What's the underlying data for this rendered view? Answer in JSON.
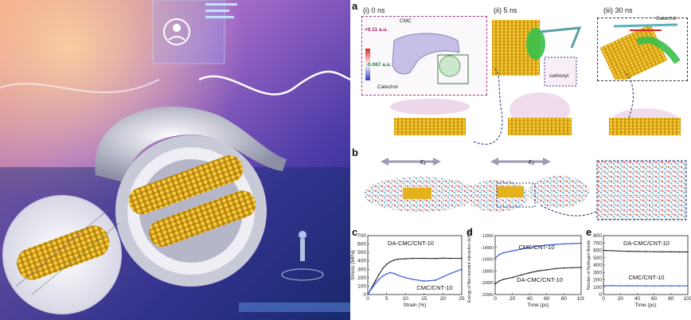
{
  "panel_a": {
    "label": "a",
    "states": [
      {
        "title": "(i) 0 ns",
        "annotations": [
          "CMC",
          "+0.11 a.u.",
          "-0.067 a.u.",
          "Catechol"
        ]
      },
      {
        "title": "(ii) 5 ns",
        "annotations": [
          "carboxyl"
        ]
      },
      {
        "title": "(iii) 30 ns",
        "annotations": [
          "Catechol"
        ]
      }
    ]
  },
  "panel_b": {
    "label": "b",
    "strain_labels": [
      "ε₁",
      "ε₂"
    ]
  },
  "chart_data": [
    {
      "id": "c",
      "type": "line",
      "panel_label": "c",
      "xlabel": "Strain (%)",
      "ylabel": "Stress (MPa)",
      "xlim": [
        0,
        25
      ],
      "ylim": [
        0,
        700
      ],
      "xticks": [
        "0",
        "5",
        "10",
        "15",
        "20",
        "25"
      ],
      "yticks": [
        "0",
        "100",
        "200",
        "300",
        "400",
        "500",
        "600",
        "700"
      ],
      "series": [
        {
          "name": "DA-CMC/CNT-10",
          "color": "#333333",
          "x": [
            0,
            1,
            2,
            3,
            4,
            5,
            6,
            7,
            8,
            10,
            12,
            15,
            18,
            20,
            22,
            25
          ],
          "y": [
            0,
            80,
            160,
            240,
            310,
            360,
            390,
            410,
            420,
            425,
            430,
            430,
            428,
            432,
            430,
            430
          ]
        },
        {
          "name": "CMC/CNT-10",
          "color": "#3b5bdb",
          "x": [
            0,
            1,
            2,
            3,
            4,
            5,
            6,
            7,
            8,
            10,
            12,
            15,
            18,
            20,
            22,
            25
          ],
          "y": [
            0,
            70,
            130,
            180,
            220,
            245,
            260,
            250,
            230,
            200,
            180,
            160,
            170,
            210,
            250,
            300
          ]
        }
      ]
    },
    {
      "id": "d",
      "type": "line",
      "panel_label": "d",
      "xlabel": "Time (ps)",
      "ylabel": "Energy of Non-bonded interaction (kJ/mol)",
      "xlim": [
        0,
        100
      ],
      "ylim": [
        -22000,
        -12000
      ],
      "xticks": [
        "0",
        "20",
        "40",
        "60",
        "80",
        "100"
      ],
      "yticks": [
        "-12000",
        "-14000",
        "-16000",
        "-18000",
        "-20000",
        "-22000"
      ],
      "series": [
        {
          "name": "CMC/CNT-10",
          "color": "#3b5bdb",
          "x": [
            0,
            5,
            10,
            20,
            30,
            40,
            50,
            60,
            70,
            80,
            90,
            100
          ],
          "y": [
            -15800,
            -15200,
            -14900,
            -14600,
            -14300,
            -14000,
            -13800,
            -13600,
            -13500,
            -13400,
            -13350,
            -13300
          ]
        },
        {
          "name": "DA-CMC/CNT-10",
          "color": "#333333",
          "x": [
            0,
            5,
            10,
            20,
            30,
            40,
            50,
            60,
            70,
            80,
            90,
            100
          ],
          "y": [
            -20200,
            -19700,
            -19400,
            -19100,
            -18700,
            -18300,
            -18000,
            -17800,
            -17600,
            -17500,
            -17450,
            -17400
          ]
        }
      ]
    },
    {
      "id": "e",
      "type": "line",
      "panel_label": "e",
      "xlabel": "Time (ps)",
      "ylabel": "Number of Hydrogen Bonds",
      "xlim": [
        0,
        100
      ],
      "ylim": [
        0,
        800
      ],
      "xticks": [
        "0",
        "20",
        "40",
        "60",
        "80",
        "100"
      ],
      "yticks": [
        "0",
        "100",
        "200",
        "300",
        "400",
        "500",
        "600",
        "700",
        "800"
      ],
      "series": [
        {
          "name": "DA-CMC/CNT-10",
          "color": "#333333",
          "x": [
            0,
            10,
            20,
            30,
            40,
            50,
            60,
            70,
            80,
            90,
            100
          ],
          "y": [
            600,
            595,
            590,
            588,
            585,
            583,
            582,
            580,
            580,
            578,
            578
          ]
        },
        {
          "name": "CMC/CNT-10",
          "color": "#3b5bdb",
          "x": [
            0,
            10,
            20,
            30,
            40,
            50,
            60,
            70,
            80,
            90,
            100
          ],
          "y": [
            120,
            120,
            118,
            119,
            118,
            118,
            117,
            118,
            118,
            117,
            118
          ]
        }
      ]
    }
  ]
}
